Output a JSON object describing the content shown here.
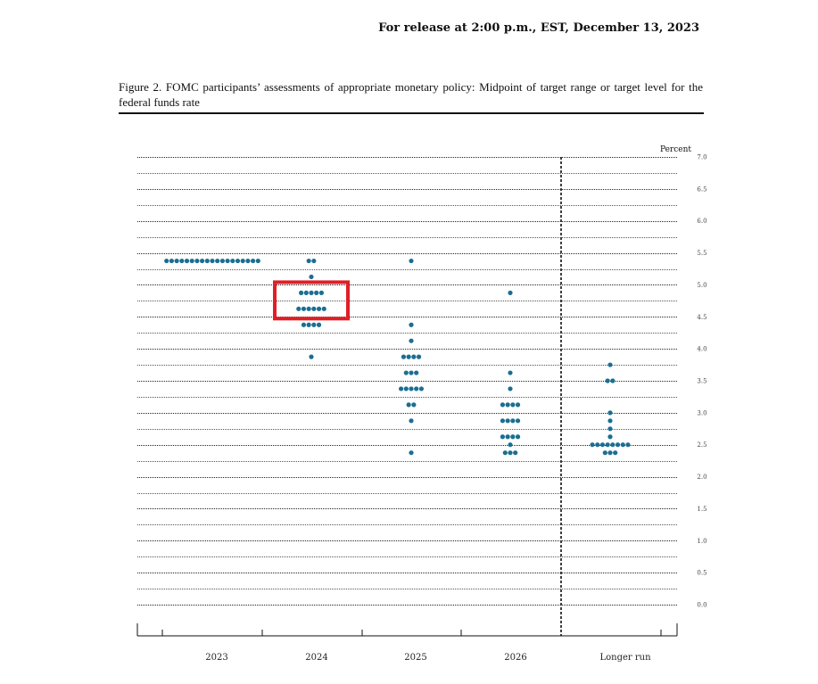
{
  "header": {
    "release": "For release at 2:00 p.m., EST, December 13, 2023"
  },
  "figure": {
    "caption": "Figure 2.  FOMC participants’ assessments of appropriate monetary policy:  Midpoint of target range or target level for the federal funds rate"
  },
  "chart_data": {
    "type": "scatter",
    "subtype": "dot-plot",
    "unit_label": "Percent",
    "y_ticks": [
      "7.0",
      "6.5",
      "6.0",
      "5.5",
      "5.0",
      "4.5",
      "4.0",
      "3.5",
      "3.0",
      "2.5",
      "2.0",
      "1.5",
      "1.0",
      "0.5",
      "0.0"
    ],
    "ylim": [
      0,
      7
    ],
    "categories": [
      "2023",
      "2024",
      "2025",
      "2026",
      "Longer run"
    ],
    "grid": true,
    "dot_color": "#1b6e93",
    "highlight_color": "#e01f26",
    "highlight": {
      "category": "2024",
      "y_range": [
        4.5,
        5.0
      ]
    },
    "series": [
      {
        "category": "2023",
        "points": [
          {
            "y": 5.375,
            "count": 19
          }
        ]
      },
      {
        "category": "2024",
        "points": [
          {
            "y": 5.375,
            "count": 2
          },
          {
            "y": 5.125,
            "count": 1
          },
          {
            "y": 4.875,
            "count": 5
          },
          {
            "y": 4.625,
            "count": 6
          },
          {
            "y": 4.375,
            "count": 4
          },
          {
            "y": 3.875,
            "count": 1
          }
        ]
      },
      {
        "category": "2025",
        "points": [
          {
            "y": 5.375,
            "count": 1
          },
          {
            "y": 4.375,
            "count": 1
          },
          {
            "y": 4.125,
            "count": 1
          },
          {
            "y": 3.875,
            "count": 4
          },
          {
            "y": 3.625,
            "count": 3
          },
          {
            "y": 3.375,
            "count": 5
          },
          {
            "y": 3.125,
            "count": 2
          },
          {
            "y": 2.875,
            "count": 1
          },
          {
            "y": 2.375,
            "count": 1
          }
        ]
      },
      {
        "category": "2026",
        "points": [
          {
            "y": 4.875,
            "count": 1
          },
          {
            "y": 3.625,
            "count": 1
          },
          {
            "y": 3.375,
            "count": 1
          },
          {
            "y": 3.125,
            "count": 4
          },
          {
            "y": 2.875,
            "count": 4
          },
          {
            "y": 2.625,
            "count": 4
          },
          {
            "y": 2.5,
            "count": 1
          },
          {
            "y": 2.375,
            "count": 3
          }
        ]
      },
      {
        "category": "Longer run",
        "points": [
          {
            "y": 3.75,
            "count": 1
          },
          {
            "y": 3.5,
            "count": 2
          },
          {
            "y": 3.0,
            "count": 1
          },
          {
            "y": 2.875,
            "count": 1
          },
          {
            "y": 2.75,
            "count": 1
          },
          {
            "y": 2.625,
            "count": 1
          },
          {
            "y": 2.5,
            "count": 8
          },
          {
            "y": 2.375,
            "count": 3
          }
        ]
      }
    ]
  }
}
